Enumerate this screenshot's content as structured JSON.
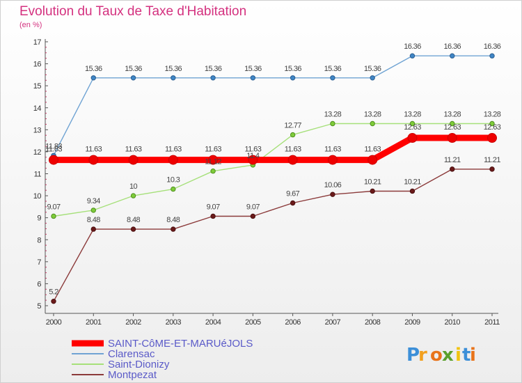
{
  "title": "Evolution du Taux de Taxe d'Habitation",
  "subtitle": "(en %)",
  "brand": "Proxiti",
  "chart_data": {
    "type": "line",
    "title": "Evolution du Taux de Taxe d'Habitation",
    "ylabel": "(en %)",
    "xlabel": "",
    "x": [
      "2000",
      "2001",
      "2002",
      "2003",
      "2004",
      "2005",
      "2006",
      "2007",
      "2008",
      "2009",
      "2010",
      "2011"
    ],
    "ylim": [
      5,
      17
    ],
    "yticks": [
      5,
      6,
      7,
      8,
      9,
      10,
      11,
      12,
      13,
      14,
      15,
      16,
      17
    ],
    "grid": false,
    "legend_position": "bottom-left",
    "series": [
      {
        "name": "SAINT-CôME-ET-MARUéJOLS",
        "color": "#ff0000",
        "values": [
          11.63,
          11.63,
          11.63,
          11.63,
          11.63,
          11.63,
          11.63,
          11.63,
          11.63,
          12.63,
          12.63,
          12.63
        ]
      },
      {
        "name": "Clarensac",
        "color": "#6fa3d3",
        "values": [
          11.83,
          15.36,
          15.36,
          15.36,
          15.36,
          15.36,
          15.36,
          15.36,
          15.36,
          16.36,
          16.36,
          16.36
        ]
      },
      {
        "name": "Saint-Dionizy",
        "color": "#a6e07a",
        "values": [
          9.07,
          9.34,
          10,
          10.3,
          11.12,
          11.4,
          12.77,
          13.28,
          13.28,
          13.28,
          13.28,
          13.28
        ]
      },
      {
        "name": "Montpezat",
        "color": "#8b3a3a",
        "values": [
          5.2,
          8.48,
          8.48,
          8.48,
          9.07,
          9.07,
          9.67,
          10.06,
          10.21,
          10.21,
          11.21,
          11.21
        ]
      }
    ],
    "data_labels": [
      [
        "11.63",
        "11.63",
        "11.63",
        "11.63",
        "11.63",
        "11.63",
        "11.63",
        "11.63",
        "11.63",
        "12.63",
        "12.63",
        "12.63"
      ],
      [
        "11.83",
        "15.36",
        "15.36",
        "15.36",
        "15.36",
        "15.36",
        "15.36",
        "15.36",
        "15.36",
        "16.36",
        "16.36",
        "16.36"
      ],
      [
        "9.07",
        "9.34",
        "10",
        "10.3",
        "11.12",
        "11.4",
        "12.77",
        "13.28",
        "13.28",
        "13.28",
        "13.28",
        "13.28"
      ],
      [
        "5.2",
        "8.48",
        "8.48",
        "8.48",
        "9.07",
        "9.07",
        "9.67",
        "10.06",
        "10.21",
        "10.21",
        "11.21",
        "11.21"
      ]
    ]
  }
}
